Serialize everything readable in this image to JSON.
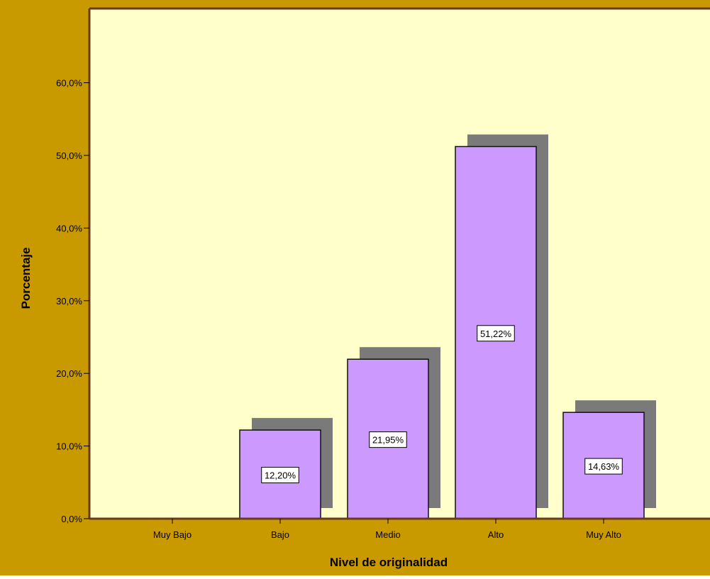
{
  "colors": {
    "frame": "#c99a00",
    "plot_background": "#ffffcc",
    "bar_fill": "#cc99ff",
    "bar_stroke": "#111111",
    "shadow": "#7a7a7a",
    "axis": "#6b3a1e",
    "label_box": "#ffffff"
  },
  "chart_data": {
    "type": "bar",
    "xlabel": "Nivel de originalidad",
    "ylabel": "Porcentaje",
    "categories": [
      "Muy Bajo",
      "Bajo",
      "Medio",
      "Alto",
      "Muy Alto"
    ],
    "values": [
      0,
      12.2,
      21.95,
      51.22,
      14.63
    ],
    "data_labels": [
      "",
      "12,20%",
      "21,95%",
      "51,22%",
      "14,63%"
    ],
    "yticks": [
      0,
      10,
      20,
      30,
      40,
      50,
      60
    ],
    "ytick_labels": [
      "0,0%",
      "10,0%",
      "20,0%",
      "30,0%",
      "40,0%",
      "50,0%",
      "60,0%"
    ],
    "ylim": [
      0,
      60
    ],
    "grid": false,
    "shadow_3d": true
  }
}
